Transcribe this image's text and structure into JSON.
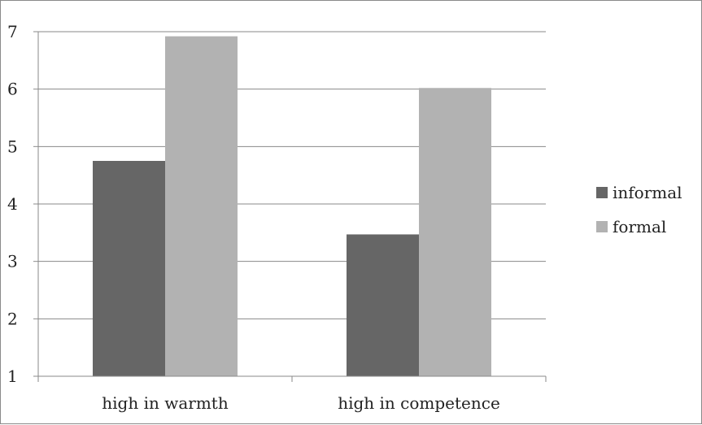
{
  "chart_data": {
    "type": "bar",
    "categories": [
      "high in warmth",
      "high in competence"
    ],
    "series": [
      {
        "name": "informal",
        "values": [
          4.75,
          3.47
        ],
        "color": "#666666"
      },
      {
        "name": "formal",
        "values": [
          6.92,
          6.02
        ],
        "color": "#b2b2b2"
      }
    ],
    "ylim": [
      1,
      7
    ],
    "yticks": [
      1,
      2,
      3,
      4,
      5,
      6,
      7
    ],
    "grid": true,
    "legend_position": "right",
    "title": "",
    "xlabel": "",
    "ylabel": ""
  }
}
